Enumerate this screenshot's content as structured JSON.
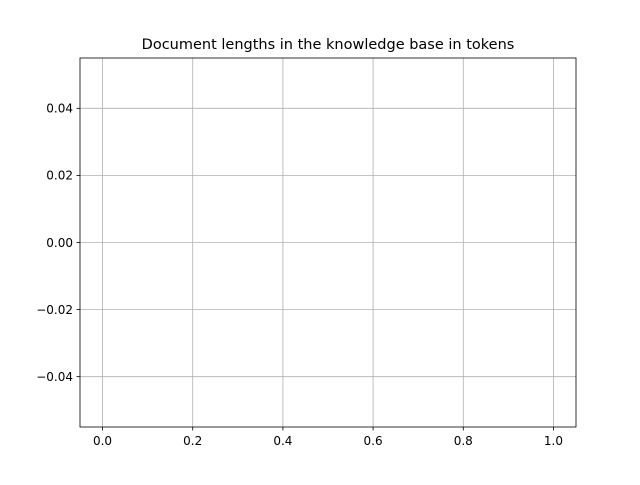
{
  "chart_data": {
    "type": "line",
    "title": "Document lengths in the knowledge base in tokens",
    "xlabel": "",
    "ylabel": "",
    "series": [],
    "xlim": [
      -0.05,
      1.05
    ],
    "ylim": [
      -0.055,
      0.055
    ],
    "x_ticks": [
      0.0,
      0.2,
      0.4,
      0.6,
      0.8,
      1.0
    ],
    "x_tick_labels": [
      "0.0",
      "0.2",
      "0.4",
      "0.6",
      "0.8",
      "1.0"
    ],
    "y_ticks": [
      0.04,
      0.02,
      0.0,
      -0.02,
      -0.04
    ],
    "y_tick_labels": [
      "0.04",
      "0.02",
      "0.00",
      "−0.02",
      "−0.04"
    ],
    "grid": true,
    "colors": {
      "grid": "#b0b0b0",
      "axes": "#000000",
      "background": "#ffffff"
    }
  }
}
